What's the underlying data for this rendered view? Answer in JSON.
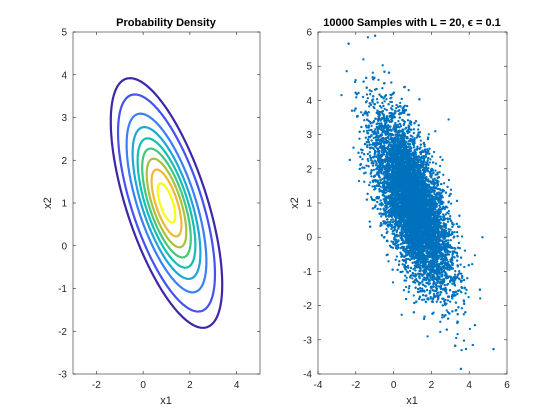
{
  "chart_data": [
    {
      "type": "contour",
      "title": "Probability Density",
      "xlabel": "x1",
      "ylabel": "x2",
      "xlim": [
        -3,
        5
      ],
      "ylim": [
        -3,
        5
      ],
      "xticks": [
        -2,
        0,
        2,
        4
      ],
      "yticks": [
        -3,
        -2,
        -1,
        0,
        1,
        2,
        3,
        4,
        5
      ],
      "grid": false,
      "distribution": {
        "mean": [
          1,
          1
        ],
        "covariance": [
          [
            1,
            -0.8
          ],
          [
            -0.8,
            1.5
          ]
        ]
      },
      "contour_levels": [
        {
          "value": 0.01,
          "color": "#3e26a8"
        },
        {
          "value": 0.02,
          "color": "#4352f0"
        },
        {
          "value": 0.04,
          "color": "#3a7ff5"
        },
        {
          "value": 0.06,
          "color": "#1fa5d6"
        },
        {
          "value": 0.08,
          "color": "#13beb6"
        },
        {
          "value": 0.1,
          "color": "#43c77e"
        },
        {
          "value": 0.12,
          "color": "#a8c13f"
        },
        {
          "value": 0.14,
          "color": "#eeb836"
        },
        {
          "value": 0.16,
          "color": "#f9fb15"
        }
      ]
    },
    {
      "type": "scatter",
      "title": "10000 Samples with L = 20, ϵ = 0.1",
      "xlabel": "x1",
      "ylabel": "x2",
      "xlim": [
        -4,
        6
      ],
      "ylim": [
        -4,
        6
      ],
      "xticks": [
        -4,
        -2,
        0,
        2,
        4,
        6
      ],
      "yticks": [
        -4,
        -3,
        -2,
        -1,
        0,
        1,
        2,
        3,
        4,
        5,
        6
      ],
      "grid": false,
      "color": "#0072bd",
      "sample_count": 10000,
      "distribution": {
        "mean": [
          1,
          1
        ],
        "covariance": [
          [
            1,
            -0.8
          ],
          [
            -0.8,
            1.5
          ]
        ]
      },
      "outliers": [
        [
          -1.6,
          5.2
        ],
        [
          -0.8,
          4.6
        ],
        [
          -0.5,
          4.5
        ],
        [
          0.8,
          4.3
        ],
        [
          -2.2,
          3.7
        ],
        [
          3.6,
          -3.3
        ],
        [
          1.8,
          -2.9
        ],
        [
          4.7,
          0.0
        ],
        [
          3.9,
          -1.2
        ]
      ]
    }
  ]
}
